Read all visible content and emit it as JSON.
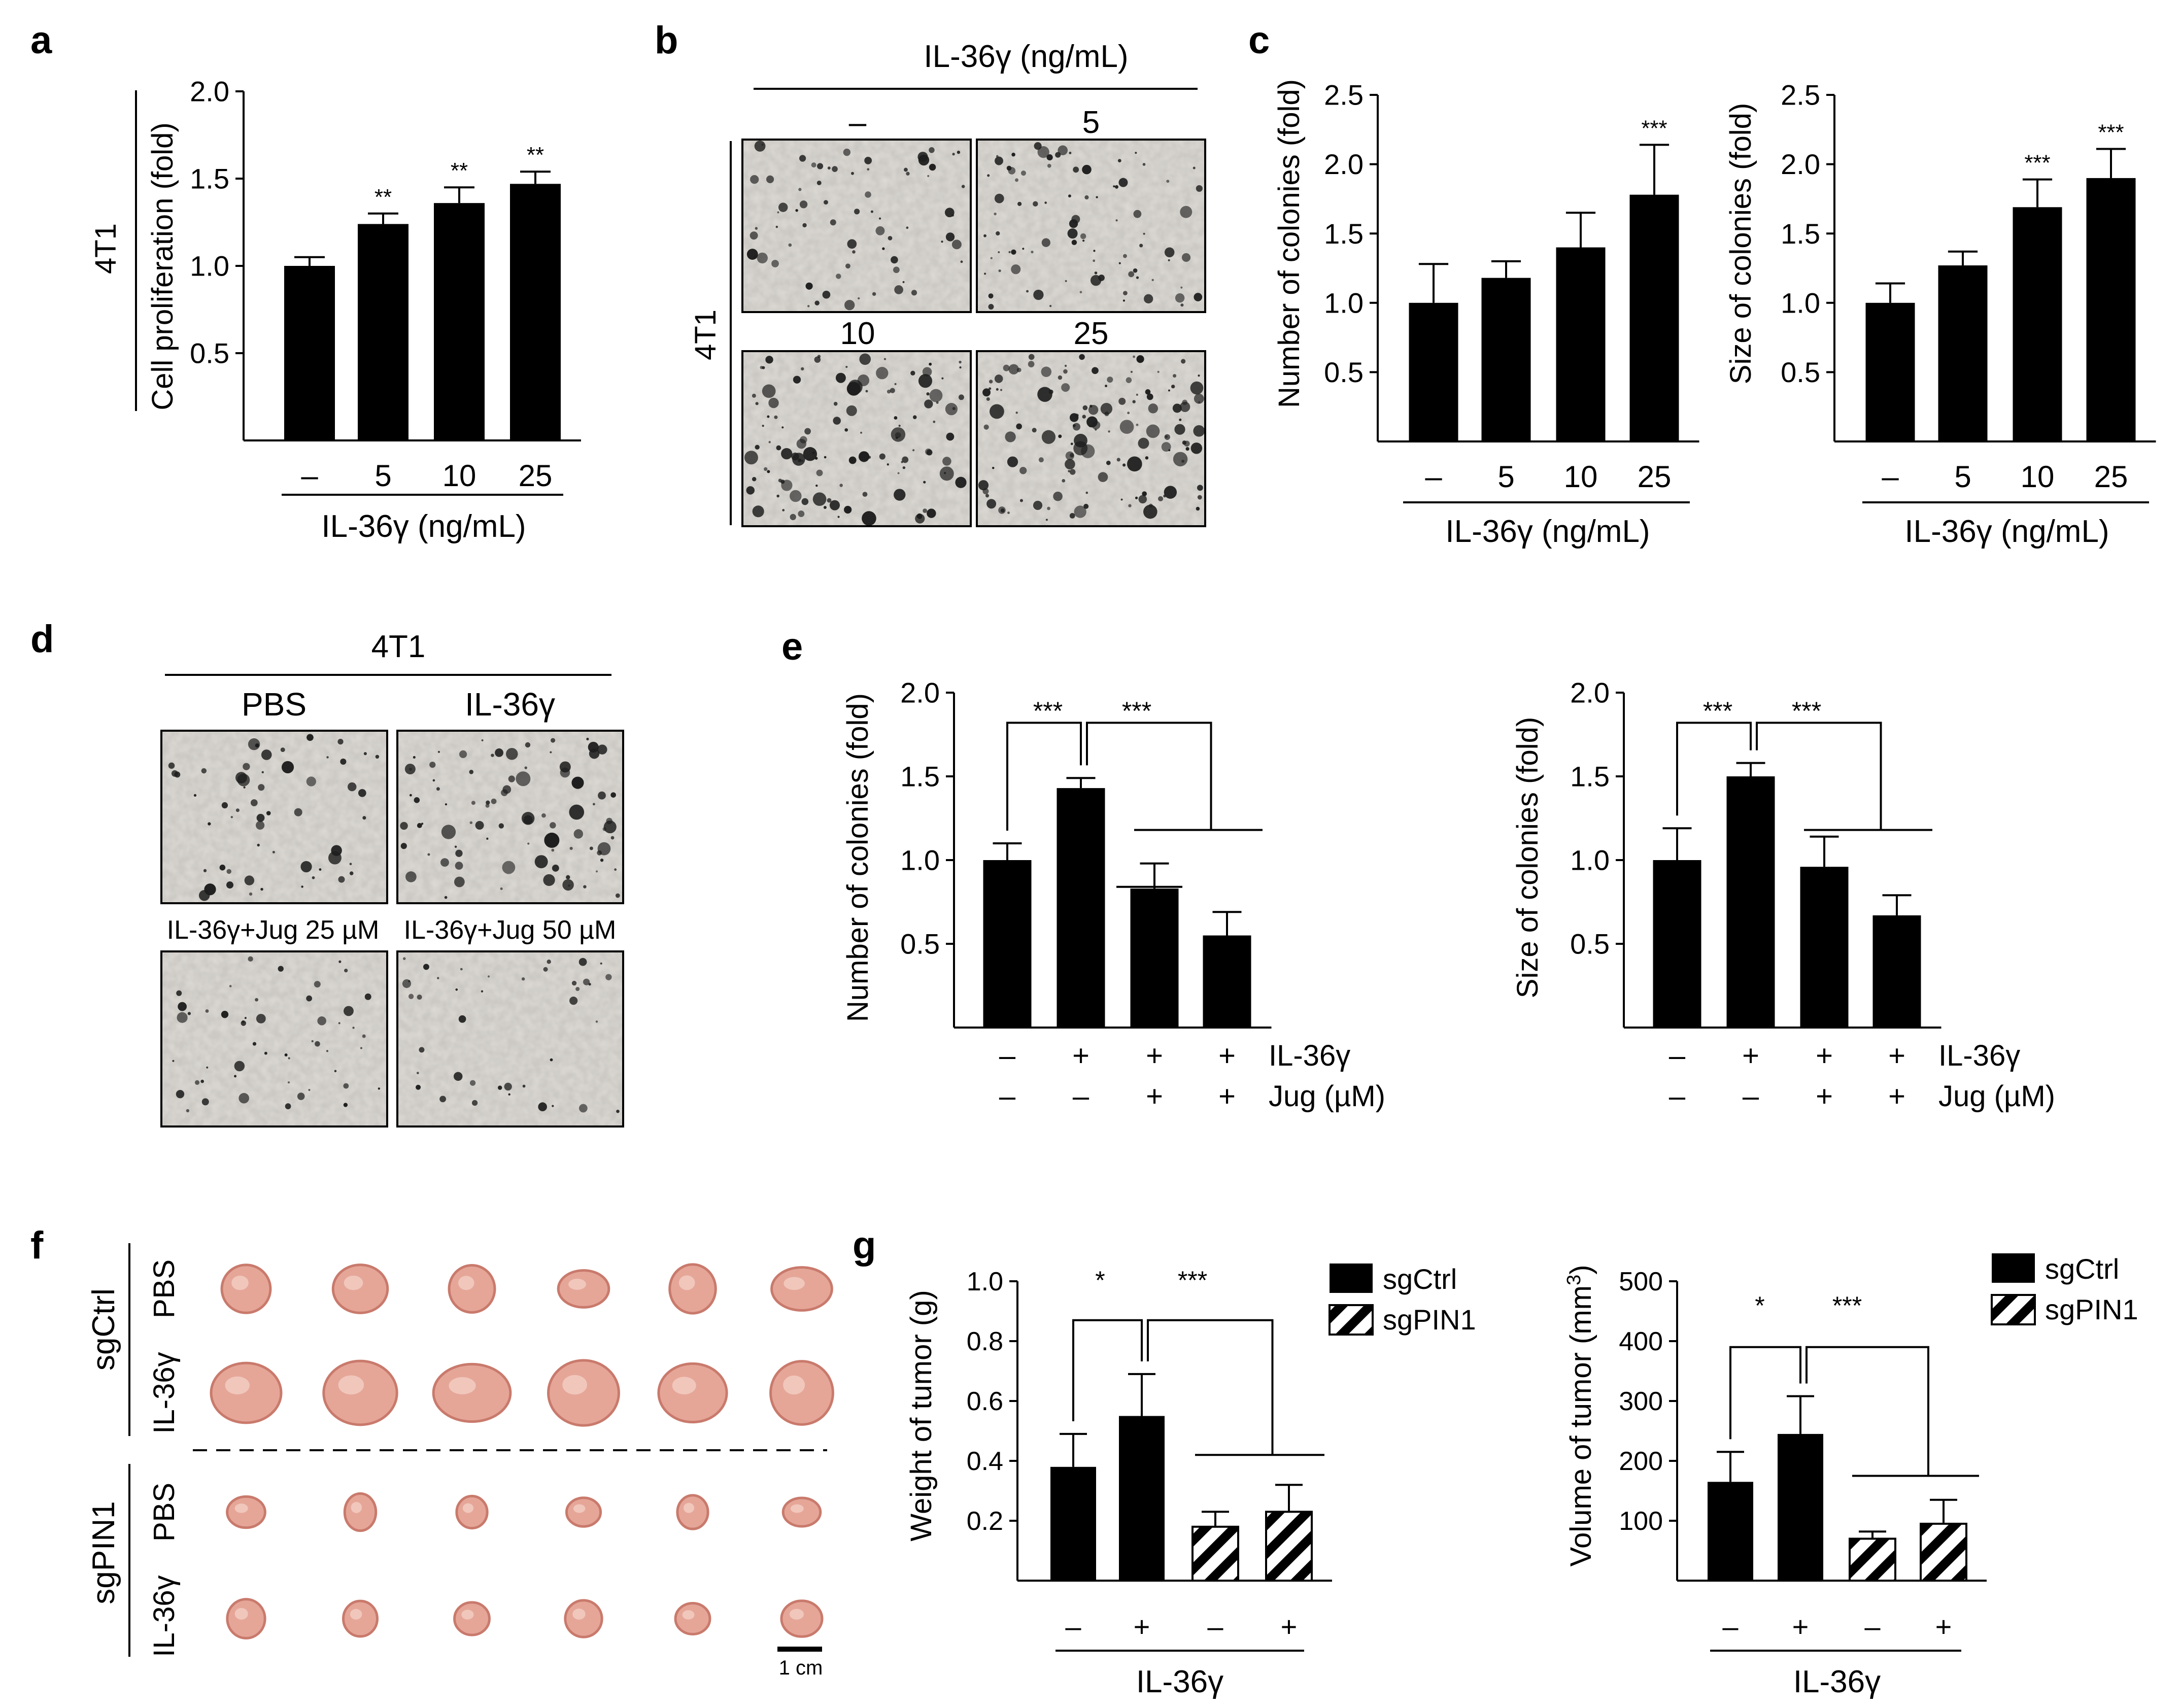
{
  "panel_labels": {
    "a": "a",
    "b": "b",
    "c": "c",
    "d": "d",
    "e": "e",
    "f": "f",
    "g": "g"
  },
  "colors": {
    "bar": "#000000",
    "axis": "#000000",
    "bg": "#ffffff",
    "micrograph": "#dedbd6",
    "colony": "#1e1e1e",
    "tumor": "#e5a698",
    "tumor_dark": "#c97a6c"
  },
  "panel_a": {
    "cell_line_label": "4T1",
    "ylabel": "Cell proliferation (fold)",
    "group_label": "IL-36γ (ng/mL)",
    "sig": [
      "",
      "**",
      "**",
      "**"
    ]
  },
  "panel_b": {
    "header": "IL-36γ (ng/mL)",
    "cell_line_label": "4T1",
    "dose_labels": [
      "–",
      "5",
      "10",
      "25"
    ],
    "image_names": [
      "colony-image-control",
      "colony-image-5",
      "colony-image-10",
      "colony-image-25"
    ]
  },
  "panel_c": {
    "left_ylabel": "Number of colonies (fold)",
    "right_ylabel": "Size of colonies (fold)",
    "left_group_label": "IL-36γ (ng/mL)",
    "right_group_label": "IL-36γ (ng/mL)",
    "left_sig": [
      "",
      "",
      "",
      "***"
    ],
    "right_sig": [
      "",
      "",
      "***",
      "***"
    ]
  },
  "panel_d": {
    "header": "4T1",
    "labels": [
      "PBS",
      "IL-36γ",
      "IL-36γ+Jug 25 µM",
      "IL-36γ+Jug 50 µM"
    ]
  },
  "panel_e": {
    "left_ylabel": "Number of colonies (fold)",
    "right_ylabel": "Size of colonies (fold)",
    "row1_label": "IL-36γ",
    "row2_label": "Jug (µM)",
    "row1_signs": [
      "–",
      "+",
      "+",
      "+"
    ],
    "row2_signs": [
      "–",
      "–",
      "+",
      "+"
    ],
    "sig1": "***",
    "sig2": "***"
  },
  "panel_f": {
    "group1": "sgCtrl",
    "group2": "sgPIN1",
    "row_labels": [
      "PBS",
      "IL-36γ",
      "PBS",
      "IL-36γ"
    ],
    "scale_bar": "1 cm"
  },
  "panel_g": {
    "left_ylabel": "Weight of tumor (g)",
    "right_ylabel_prefix": "Volume of tumor (mm",
    "right_ylabel_sup": "3",
    "right_ylabel_suffix": ")",
    "group_label": "IL-36γ",
    "signs": [
      "–",
      "+",
      "–",
      "+"
    ],
    "legend": [
      "sgCtrl",
      "sgPIN1"
    ],
    "sig1": "*",
    "sig2": "***"
  },
  "chart_data": [
    {
      "id": "a",
      "type": "bar",
      "categories": [
        "–",
        "5",
        "10",
        "25"
      ],
      "values": [
        1.0,
        1.24,
        1.36,
        1.47
      ],
      "errors": [
        0.05,
        0.06,
        0.09,
        0.07
      ],
      "ylim": [
        0,
        2.0
      ],
      "yticks": [
        0.5,
        1.0,
        1.5,
        2.0
      ],
      "ylabel": "Cell proliferation (fold)",
      "xlabel": "IL-36γ (ng/mL)"
    },
    {
      "id": "c-number",
      "type": "bar",
      "categories": [
        "–",
        "5",
        "10",
        "25"
      ],
      "values": [
        1.0,
        1.18,
        1.4,
        1.78
      ],
      "errors": [
        0.28,
        0.12,
        0.25,
        0.36
      ],
      "ylim": [
        0,
        2.5
      ],
      "yticks": [
        0.5,
        1.0,
        1.5,
        2.0,
        2.5
      ],
      "ylabel": "Number of colonies (fold)",
      "xlabel": "IL-36γ (ng/mL)"
    },
    {
      "id": "c-size",
      "type": "bar",
      "categories": [
        "–",
        "5",
        "10",
        "25"
      ],
      "values": [
        1.0,
        1.27,
        1.69,
        1.9
      ],
      "errors": [
        0.14,
        0.1,
        0.2,
        0.21
      ],
      "ylim": [
        0,
        2.5
      ],
      "yticks": [
        0.5,
        1.0,
        1.5,
        2.0,
        2.5
      ],
      "ylabel": "Size of colonies (fold)",
      "xlabel": "IL-36γ (ng/mL)"
    },
    {
      "id": "e-number",
      "type": "bar",
      "categories": [
        "– / –",
        "+ / –",
        "+ / +",
        "+ / +"
      ],
      "values": [
        1.0,
        1.43,
        0.83,
        0.55
      ],
      "errors": [
        0.1,
        0.06,
        0.15,
        0.14
      ],
      "ylim": [
        0,
        2.0
      ],
      "yticks": [
        0.5,
        1.0,
        1.5,
        2.0
      ],
      "ylabel": "Number of colonies (fold)"
    },
    {
      "id": "e-size",
      "type": "bar",
      "categories": [
        "– / –",
        "+ / –",
        "+ / +",
        "+ / +"
      ],
      "values": [
        1.0,
        1.5,
        0.96,
        0.67
      ],
      "errors": [
        0.19,
        0.08,
        0.18,
        0.12
      ],
      "ylim": [
        0,
        2.0
      ],
      "yticks": [
        0.5,
        1.0,
        1.5,
        2.0
      ],
      "ylabel": "Size of colonies (fold)"
    },
    {
      "id": "g-weight",
      "type": "bar",
      "categories": [
        "–",
        "+",
        "–",
        "+"
      ],
      "groups": [
        "sgCtrl",
        "sgCtrl",
        "sgPIN1",
        "sgPIN1"
      ],
      "values": [
        0.38,
        0.55,
        0.18,
        0.23
      ],
      "errors": [
        0.11,
        0.14,
        0.05,
        0.09
      ],
      "ylim": [
        0,
        1.0
      ],
      "yticks": [
        0.2,
        0.4,
        0.6,
        0.8,
        1.0
      ],
      "ylabel": "Weight of tumor (g)",
      "xlabel": "IL-36γ"
    },
    {
      "id": "g-volume",
      "type": "bar",
      "categories": [
        "–",
        "+",
        "–",
        "+"
      ],
      "groups": [
        "sgCtrl",
        "sgCtrl",
        "sgPIN1",
        "sgPIN1"
      ],
      "values": [
        165,
        245,
        70,
        95
      ],
      "errors": [
        50,
        63,
        12,
        40
      ],
      "ylim": [
        0,
        500
      ],
      "yticks": [
        100,
        200,
        300,
        400,
        500
      ],
      "ylabel": "Volume of tumor (mm3)",
      "xlabel": "IL-36γ"
    }
  ]
}
